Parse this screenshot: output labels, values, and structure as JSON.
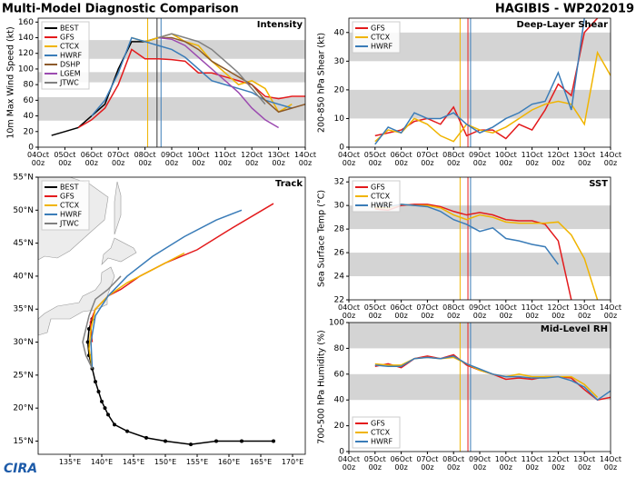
{
  "header": {
    "left": "Multi-Model Diagnostic Comparison",
    "right": "HAGIBIS - WP202019",
    "logo": "CIRA"
  },
  "chart_data": [
    {
      "type": "line",
      "title": "Intensity",
      "ylabel": "10m Max Wind Speed (kt)",
      "legend": "upper left",
      "x": [
        4,
        4.5,
        5,
        5.5,
        6,
        6.5,
        7,
        7.5,
        8,
        8.5,
        9,
        9.5,
        10,
        10.5,
        11,
        11.5,
        12,
        12.5,
        13,
        13.5,
        14
      ],
      "xlim": [
        4,
        14
      ],
      "ylim": [
        0,
        165
      ],
      "xticks": [
        {
          "value": 4,
          "label": "04Oct\n00z"
        },
        {
          "value": 5,
          "label": "05Oct\n00z"
        },
        {
          "value": 6,
          "label": "06Oct\n00z"
        },
        {
          "value": 7,
          "label": "07Oct\n00z"
        },
        {
          "value": 8,
          "label": "08Oct\n00z"
        },
        {
          "value": 9,
          "label": "09Oct\n00z"
        },
        {
          "value": 10,
          "label": "10Oct\n00z"
        },
        {
          "value": 11,
          "label": "11Oct\n00z"
        },
        {
          "value": 12,
          "label": "12Oct\n00z"
        },
        {
          "value": 13,
          "label": "13Oct\n00z"
        },
        {
          "value": 14,
          "label": "14Oct\n00z"
        }
      ],
      "yticks": [
        0,
        20,
        40,
        60,
        80,
        100,
        120,
        140,
        160
      ],
      "bands": [
        [
          34,
          64
        ],
        [
          83,
          96
        ],
        [
          113,
          137
        ]
      ],
      "vlines": [
        {
          "x": 8.1,
          "color": "#f0b400"
        },
        {
          "x": 8.45,
          "color": "#333333"
        },
        {
          "x": 8.6,
          "color": "#3a7cb8"
        }
      ],
      "series": [
        {
          "name": "BEST",
          "color": "#000000",
          "values": [
            null,
            15,
            20,
            25,
            40,
            55,
            100,
            135,
            135,
            140,
            null,
            null,
            null,
            null,
            null,
            null,
            null,
            null,
            null,
            null,
            null
          ]
        },
        {
          "name": "GFS",
          "color": "#e31a1c",
          "values": [
            null,
            null,
            null,
            25,
            35,
            50,
            80,
            125,
            113,
            113,
            112,
            110,
            95,
            95,
            90,
            85,
            80,
            65,
            62,
            65,
            65
          ]
        },
        {
          "name": "CTCX",
          "color": "#f0b400",
          "values": [
            null,
            null,
            null,
            null,
            null,
            null,
            null,
            140,
            135,
            140,
            145,
            135,
            130,
            110,
            95,
            80,
            85,
            75,
            45,
            55,
            null
          ]
        },
        {
          "name": "HWRF",
          "color": "#3a7cb8",
          "values": [
            null,
            null,
            null,
            null,
            40,
            60,
            95,
            140,
            135,
            130,
            125,
            115,
            100,
            85,
            80,
            75,
            70,
            60,
            55,
            50,
            null
          ]
        },
        {
          "name": "DSHP",
          "color": "#8c5a2b",
          "values": [
            null,
            null,
            null,
            null,
            null,
            null,
            null,
            null,
            null,
            140,
            140,
            135,
            125,
            110,
            100,
            90,
            80,
            60,
            45,
            50,
            55
          ]
        },
        {
          "name": "LGEM",
          "color": "#9b4ab0",
          "values": [
            null,
            null,
            null,
            null,
            null,
            null,
            null,
            null,
            null,
            140,
            138,
            130,
            115,
            100,
            85,
            70,
            50,
            35,
            25,
            null,
            null
          ]
        },
        {
          "name": "JTWC",
          "color": "#808080",
          "values": [
            null,
            null,
            null,
            null,
            null,
            null,
            null,
            null,
            null,
            140,
            145,
            140,
            135,
            125,
            110,
            95,
            75,
            55,
            null,
            null,
            null
          ]
        }
      ]
    },
    {
      "type": "map",
      "title": "Track",
      "legend": "upper left",
      "xlim": [
        130,
        172
      ],
      "ylim": [
        13,
        55
      ],
      "xticks": [
        {
          "value": 135,
          "label": "135°E"
        },
        {
          "value": 140,
          "label": "140°E"
        },
        {
          "value": 145,
          "label": "145°E"
        },
        {
          "value": 150,
          "label": "150°E"
        },
        {
          "value": 155,
          "label": "155°E"
        },
        {
          "value": 160,
          "label": "160°E"
        },
        {
          "value": 165,
          "label": "165°E"
        },
        {
          "value": 170,
          "label": "170°E"
        }
      ],
      "yticks": [
        {
          "value": 15,
          "label": "15°N"
        },
        {
          "value": 20,
          "label": "20°N"
        },
        {
          "value": 25,
          "label": "25°N"
        },
        {
          "value": 30,
          "label": "30°N"
        },
        {
          "value": 35,
          "label": "35°N"
        },
        {
          "value": 40,
          "label": "40°N"
        },
        {
          "value": 45,
          "label": "45°N"
        },
        {
          "value": 50,
          "label": "50°N"
        },
        {
          "value": 55,
          "label": "55°N"
        }
      ],
      "series": [
        {
          "name": "BEST",
          "color": "#000000",
          "x": [
            167,
            162,
            158,
            154,
            150,
            147,
            144,
            142,
            141,
            140.5,
            140,
            139.5,
            139,
            138.5,
            138,
            137.8,
            138,
            138.5
          ],
          "values": [
            15,
            15,
            15,
            14.5,
            15,
            15.5,
            16.5,
            17.5,
            19,
            20,
            21,
            22.5,
            24,
            26,
            28,
            30,
            32,
            33.5
          ]
        },
        {
          "name": "GFS",
          "color": "#e31a1c",
          "x": [
            138.5,
            138.2,
            139,
            141,
            143,
            146,
            150,
            155,
            160,
            167
          ],
          "values": [
            30,
            33,
            35,
            37,
            38,
            40,
            42,
            44,
            47,
            51
          ]
        },
        {
          "name": "CTCX",
          "color": "#f0b400",
          "x": [
            138.5,
            138,
            138.3,
            139,
            141,
            144,
            148,
            153
          ],
          "values": [
            26,
            29,
            32,
            35,
            37,
            39,
            41,
            43.5
          ]
        },
        {
          "name": "HWRF",
          "color": "#3a7cb8",
          "x": [
            138.5,
            138.3,
            139,
            141,
            144,
            148,
            153,
            158,
            162
          ],
          "values": [
            26,
            30,
            34,
            37,
            40,
            43,
            46,
            48.5,
            50
          ]
        },
        {
          "name": "JTWC",
          "color": "#808080",
          "x": [
            138.5,
            137.5,
            137,
            137.5,
            138,
            139,
            141,
            143
          ],
          "values": [
            26,
            28,
            30,
            32,
            34,
            36.5,
            38,
            40
          ]
        }
      ]
    },
    {
      "type": "line",
      "title": "Deep-Layer Shear",
      "ylabel": "200-850 hPa Shear (kt)",
      "legend": "upper left",
      "x": [
        4,
        4.5,
        5,
        5.5,
        6,
        6.5,
        7,
        7.5,
        8,
        8.5,
        9,
        9.5,
        10,
        10.5,
        11,
        11.5,
        12,
        12.5,
        13,
        13.5,
        14
      ],
      "xlim": [
        4,
        14
      ],
      "ylim": [
        0,
        45
      ],
      "xticks": [
        {
          "value": 4,
          "label": "04Oct\n00z"
        },
        {
          "value": 5,
          "label": "05Oct\n00z"
        },
        {
          "value": 6,
          "label": "06Oct\n00z"
        },
        {
          "value": 7,
          "label": "07Oct\n00z"
        },
        {
          "value": 8,
          "label": "08Oct\n00z"
        },
        {
          "value": 9,
          "label": "09Oct\n00z"
        },
        {
          "value": 10,
          "label": "10Oct\n00z"
        },
        {
          "value": 11,
          "label": "11Oct\n00z"
        },
        {
          "value": 12,
          "label": "12Oct\n00z"
        },
        {
          "value": 13,
          "label": "13Oct\n00z"
        },
        {
          "value": 14,
          "label": "14Oct\n00z"
        }
      ],
      "yticks": [
        0,
        10,
        20,
        30,
        40
      ],
      "bands": [
        [
          10,
          20
        ],
        [
          30,
          40
        ]
      ],
      "vlines": [
        {
          "x": 8.25,
          "color": "#f0b400"
        },
        {
          "x": 8.55,
          "color": "#e31a1c"
        },
        {
          "x": 8.65,
          "color": "#3a7cb8"
        }
      ],
      "series": [
        {
          "name": "GFS",
          "color": "#e31a1c",
          "values": [
            null,
            null,
            4,
            5,
            6,
            9,
            10,
            8,
            14,
            4,
            6,
            6,
            3,
            8,
            6,
            13,
            22,
            18,
            40,
            45,
            null
          ]
        },
        {
          "name": "CTCX",
          "color": "#f0b400",
          "values": [
            null,
            null,
            2,
            6,
            5,
            10,
            8,
            4,
            2,
            8,
            6,
            5,
            7,
            10,
            13,
            15,
            16,
            15,
            8,
            33,
            25
          ]
        },
        {
          "name": "HWRF",
          "color": "#3a7cb8",
          "values": [
            null,
            null,
            1,
            7,
            5,
            12,
            10,
            10,
            12,
            8,
            5,
            7,
            10,
            12,
            15,
            16,
            26,
            13,
            45,
            null,
            null
          ]
        }
      ]
    },
    {
      "type": "line",
      "title": "SST",
      "ylabel": "Sea Surface Temp (°C)",
      "legend": "upper left",
      "x": [
        4,
        4.5,
        5,
        5.5,
        6,
        6.5,
        7,
        7.5,
        8,
        8.5,
        9,
        9.5,
        10,
        10.5,
        11,
        11.5,
        12,
        12.5,
        13,
        13.5,
        14
      ],
      "xlim": [
        4,
        14
      ],
      "ylim": [
        22,
        32.4
      ],
      "xticks": [
        {
          "value": 4,
          "label": "04Oct\n00z"
        },
        {
          "value": 5,
          "label": "05Oct\n00z"
        },
        {
          "value": 6,
          "label": "06Oct\n00z"
        },
        {
          "value": 7,
          "label": "07Oct\n00z"
        },
        {
          "value": 8,
          "label": "08Oct\n00z"
        },
        {
          "value": 9,
          "label": "09Oct\n00z"
        },
        {
          "value": 10,
          "label": "10Oct\n00z"
        },
        {
          "value": 11,
          "label": "11Oct\n00z"
        },
        {
          "value": 12,
          "label": "12Oct\n00z"
        },
        {
          "value": 13,
          "label": "13Oct\n00z"
        },
        {
          "value": 14,
          "label": "14Oct\n00z"
        }
      ],
      "yticks": [
        22,
        24,
        26,
        28,
        30,
        32
      ],
      "bands": [
        [
          24,
          26
        ],
        [
          28,
          30
        ]
      ],
      "vlines": [
        {
          "x": 8.25,
          "color": "#f0b400"
        },
        {
          "x": 8.55,
          "color": "#e31a1c"
        },
        {
          "x": 8.65,
          "color": "#3a7cb8"
        }
      ],
      "series": [
        {
          "name": "GFS",
          "color": "#e31a1c",
          "values": [
            null,
            null,
            29.7,
            29.6,
            30,
            30.1,
            30.1,
            29.9,
            29.5,
            29.2,
            29.4,
            29.2,
            28.8,
            28.7,
            28.7,
            28.4,
            27,
            22,
            null,
            null,
            null
          ]
        },
        {
          "name": "CTCX",
          "color": "#f0b400",
          "values": [
            null,
            null,
            29.8,
            29.8,
            30.1,
            30,
            30,
            29.8,
            29.2,
            28.8,
            29.2,
            29,
            28.6,
            28.5,
            28.5,
            28.5,
            28.6,
            27.5,
            25.5,
            22,
            null
          ]
        },
        {
          "name": "HWRF",
          "color": "#3a7cb8",
          "values": [
            null,
            null,
            30.2,
            29.9,
            30.1,
            30,
            29.9,
            29.5,
            28.8,
            28.4,
            27.8,
            28.1,
            27.2,
            27,
            26.7,
            26.5,
            25,
            null,
            null,
            null,
            null
          ]
        }
      ]
    },
    {
      "type": "line",
      "title": "Mid-Level RH",
      "ylabel": "700-500 hPa Humidity (%)",
      "legend": "lower left",
      "x": [
        4,
        4.5,
        5,
        5.5,
        6,
        6.5,
        7,
        7.5,
        8,
        8.5,
        9,
        9.5,
        10,
        10.5,
        11,
        11.5,
        12,
        12.5,
        13,
        13.5,
        14
      ],
      "xlim": [
        4,
        14
      ],
      "ylim": [
        0,
        100
      ],
      "xticks": [
        {
          "value": 4,
          "label": "04Oct\n00z"
        },
        {
          "value": 5,
          "label": "05Oct\n00z"
        },
        {
          "value": 6,
          "label": "06Oct\n00z"
        },
        {
          "value": 7,
          "label": "07Oct\n00z"
        },
        {
          "value": 8,
          "label": "08Oct\n00z"
        },
        {
          "value": 9,
          "label": "09Oct\n00z"
        },
        {
          "value": 10,
          "label": "10Oct\n00z"
        },
        {
          "value": 11,
          "label": "11Oct\n00z"
        },
        {
          "value": 12,
          "label": "12Oct\n00z"
        },
        {
          "value": 13,
          "label": "13Oct\n00z"
        },
        {
          "value": 14,
          "label": "14Oct\n00z"
        }
      ],
      "yticks": [
        0,
        20,
        40,
        60,
        80,
        100
      ],
      "bands": [
        [
          40,
          60
        ],
        [
          80,
          100
        ]
      ],
      "vlines": [
        {
          "x": 8.25,
          "color": "#f0b400"
        },
        {
          "x": 8.55,
          "color": "#e31a1c"
        },
        {
          "x": 8.65,
          "color": "#3a7cb8"
        }
      ],
      "series": [
        {
          "name": "GFS",
          "color": "#e31a1c",
          "values": [
            null,
            null,
            66,
            68,
            65,
            72,
            74,
            72,
            75,
            67,
            63,
            60,
            56,
            57,
            56,
            58,
            58,
            57,
            48,
            40,
            42
          ]
        },
        {
          "name": "CTCX",
          "color": "#f0b400",
          "values": [
            null,
            null,
            68,
            67,
            67,
            72,
            73,
            72,
            73,
            68,
            63,
            60,
            58,
            60,
            58,
            58,
            58,
            58,
            52,
            42,
            null
          ]
        },
        {
          "name": "HWRF",
          "color": "#3a7cb8",
          "values": [
            null,
            null,
            67,
            66,
            66,
            72,
            73,
            72,
            74,
            68,
            64,
            60,
            58,
            58,
            57,
            57,
            58,
            55,
            50,
            40,
            47
          ]
        }
      ]
    }
  ]
}
